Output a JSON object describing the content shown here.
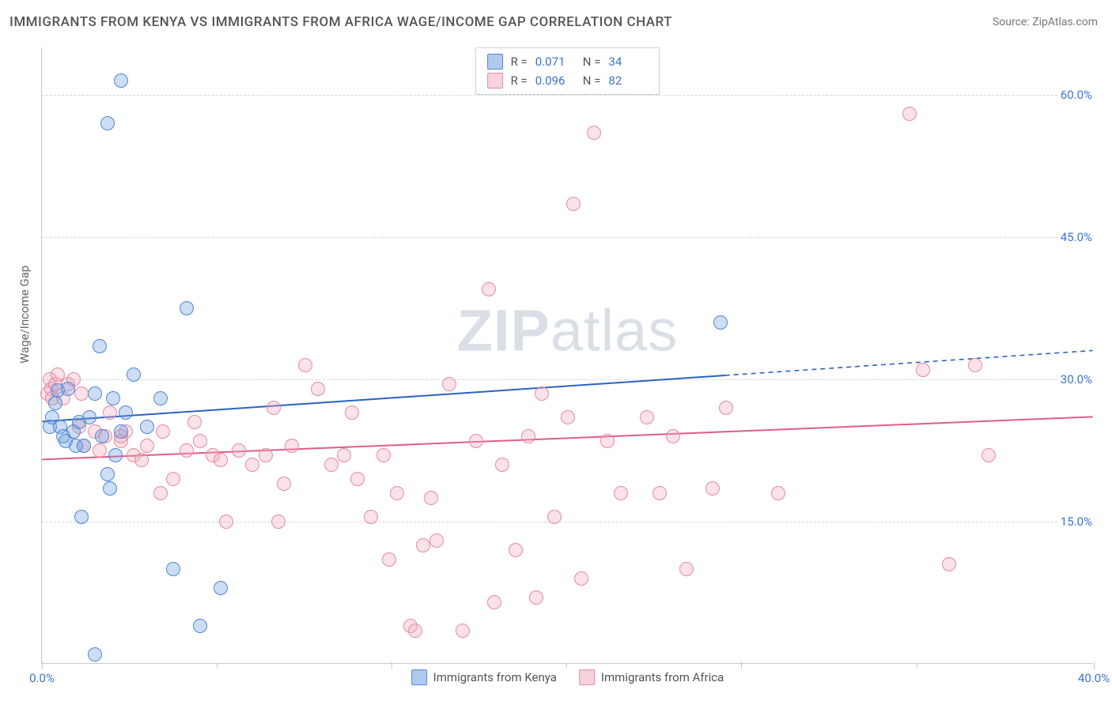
{
  "title": "IMMIGRANTS FROM KENYA VS IMMIGRANTS FROM AFRICA WAGE/INCOME GAP CORRELATION CHART",
  "source_prefix": "Source: ",
  "source_name": "ZipAtlas.com",
  "y_axis_label": "Wage/Income Gap",
  "watermark_bold": "ZIP",
  "watermark_light": "atlas",
  "chart": {
    "type": "scatter",
    "background_color": "#ffffff",
    "grid_color": "#d6d6d6",
    "axis_color": "#c9c9c9",
    "tick_label_color": "#3b74d1",
    "x_range": [
      0.0,
      40.0
    ],
    "y_range": [
      0.0,
      65.0
    ],
    "y_ticks": [
      15.0,
      30.0,
      45.0,
      60.0
    ],
    "y_tick_labels": [
      "15.0%",
      "30.0%",
      "45.0%",
      "60.0%"
    ],
    "x_ticks": [
      0.0,
      13.3,
      26.6,
      40.0
    ],
    "x_tick_labels": [
      "0.0%",
      "",
      "",
      "40.0%"
    ],
    "x_minor_ticks": [
      6.65,
      19.95,
      33.25
    ],
    "point_radius": 9,
    "point_border_width": 1.4,
    "point_fill_opacity": 0.35,
    "series": [
      {
        "id": "kenya",
        "name": "Immigrants from Kenya",
        "color": "#6e9fe0",
        "border_color": "#4f87d6",
        "r_value": "0.071",
        "n_value": "34",
        "trend": {
          "y_start": 25.5,
          "y_end": 33.0,
          "solid_until_x": 26.0,
          "color": "#2a63c0",
          "width": 2
        },
        "points": [
          [
            0.3,
            25.0
          ],
          [
            0.4,
            26.0
          ],
          [
            0.5,
            27.5
          ],
          [
            0.6,
            28.8
          ],
          [
            0.7,
            25.0
          ],
          [
            0.8,
            24.0
          ],
          [
            0.9,
            23.5
          ],
          [
            1.0,
            29.0
          ],
          [
            1.2,
            24.5
          ],
          [
            1.3,
            23.0
          ],
          [
            1.4,
            25.5
          ],
          [
            1.6,
            23.0
          ],
          [
            1.8,
            26.0
          ],
          [
            2.0,
            28.5
          ],
          [
            2.2,
            33.5
          ],
          [
            2.3,
            24.0
          ],
          [
            3.0,
            61.5
          ],
          [
            2.5,
            57.0
          ],
          [
            1.5,
            15.5
          ],
          [
            2.0,
            1.0
          ],
          [
            2.7,
            28.0
          ],
          [
            3.5,
            30.5
          ],
          [
            2.5,
            20.0
          ],
          [
            2.6,
            18.5
          ],
          [
            2.8,
            22.0
          ],
          [
            3.0,
            24.5
          ],
          [
            3.2,
            26.5
          ],
          [
            4.5,
            28.0
          ],
          [
            5.5,
            37.5
          ],
          [
            5.0,
            10.0
          ],
          [
            6.0,
            4.0
          ],
          [
            6.8,
            8.0
          ],
          [
            25.8,
            36.0
          ],
          [
            4.0,
            25.0
          ]
        ]
      },
      {
        "id": "africa",
        "name": "Immigrants from Africa",
        "color": "#efadbd",
        "border_color": "#e68aa0",
        "r_value": "0.096",
        "n_value": "82",
        "trend": {
          "y_start": 21.5,
          "y_end": 26.0,
          "solid_until_x": 40.0,
          "color": "#e05d85",
          "width": 2
        },
        "points": [
          [
            0.2,
            28.5
          ],
          [
            0.3,
            30.0
          ],
          [
            0.35,
            29.0
          ],
          [
            0.4,
            28.0
          ],
          [
            0.5,
            29.5
          ],
          [
            0.6,
            30.5
          ],
          [
            0.8,
            28.0
          ],
          [
            1.0,
            29.5
          ],
          [
            1.2,
            30.0
          ],
          [
            1.5,
            28.5
          ],
          [
            1.4,
            25.0
          ],
          [
            1.6,
            23.0
          ],
          [
            2.0,
            24.5
          ],
          [
            2.2,
            22.5
          ],
          [
            2.4,
            24.0
          ],
          [
            2.6,
            26.5
          ],
          [
            3.0,
            23.5
          ],
          [
            3.2,
            24.5
          ],
          [
            3.5,
            22.0
          ],
          [
            3.8,
            21.5
          ],
          [
            4.0,
            23.0
          ],
          [
            4.5,
            18.0
          ],
          [
            4.6,
            24.5
          ],
          [
            5.0,
            19.5
          ],
          [
            5.5,
            22.5
          ],
          [
            6.0,
            23.5
          ],
          [
            6.5,
            22.0
          ],
          [
            6.8,
            21.5
          ],
          [
            7.0,
            15.0
          ],
          [
            7.5,
            22.5
          ],
          [
            8.0,
            21.0
          ],
          [
            8.5,
            22.0
          ],
          [
            9.0,
            15.0
          ],
          [
            9.5,
            23.0
          ],
          [
            10.0,
            31.5
          ],
          [
            10.5,
            29.0
          ],
          [
            11.0,
            21.0
          ],
          [
            11.5,
            22.0
          ],
          [
            12.0,
            19.5
          ],
          [
            12.5,
            15.5
          ],
          [
            13.0,
            22.0
          ],
          [
            13.2,
            11.0
          ],
          [
            13.5,
            18.0
          ],
          [
            14.0,
            4.0
          ],
          [
            14.2,
            3.5
          ],
          [
            14.5,
            12.5
          ],
          [
            15.0,
            13.0
          ],
          [
            15.5,
            29.5
          ],
          [
            16.0,
            3.5
          ],
          [
            16.5,
            23.5
          ],
          [
            17.0,
            39.5
          ],
          [
            17.2,
            6.5
          ],
          [
            17.5,
            21.0
          ],
          [
            18.0,
            12.0
          ],
          [
            18.5,
            24.0
          ],
          [
            18.8,
            7.0
          ],
          [
            19.0,
            28.5
          ],
          [
            19.5,
            15.5
          ],
          [
            20.0,
            26.0
          ],
          [
            20.5,
            9.0
          ],
          [
            20.2,
            48.5
          ],
          [
            21.0,
            56.0
          ],
          [
            21.5,
            23.5
          ],
          [
            22.0,
            18.0
          ],
          [
            23.0,
            26.0
          ],
          [
            23.5,
            18.0
          ],
          [
            24.0,
            24.0
          ],
          [
            24.5,
            10.0
          ],
          [
            25.5,
            18.5
          ],
          [
            26.0,
            27.0
          ],
          [
            28.0,
            18.0
          ],
          [
            33.5,
            31.0
          ],
          [
            33.0,
            58.0
          ],
          [
            34.5,
            10.5
          ],
          [
            35.5,
            31.5
          ],
          [
            36.0,
            22.0
          ],
          [
            5.8,
            25.5
          ],
          [
            8.8,
            27.0
          ],
          [
            11.8,
            26.5
          ],
          [
            14.8,
            17.5
          ],
          [
            3.0,
            24.0
          ],
          [
            9.2,
            19.0
          ]
        ]
      }
    ]
  },
  "legend_top": {
    "r_label": "R  =",
    "n_label": "N  ="
  },
  "legend_bottom": {
    "items": [
      "kenya",
      "africa"
    ]
  }
}
